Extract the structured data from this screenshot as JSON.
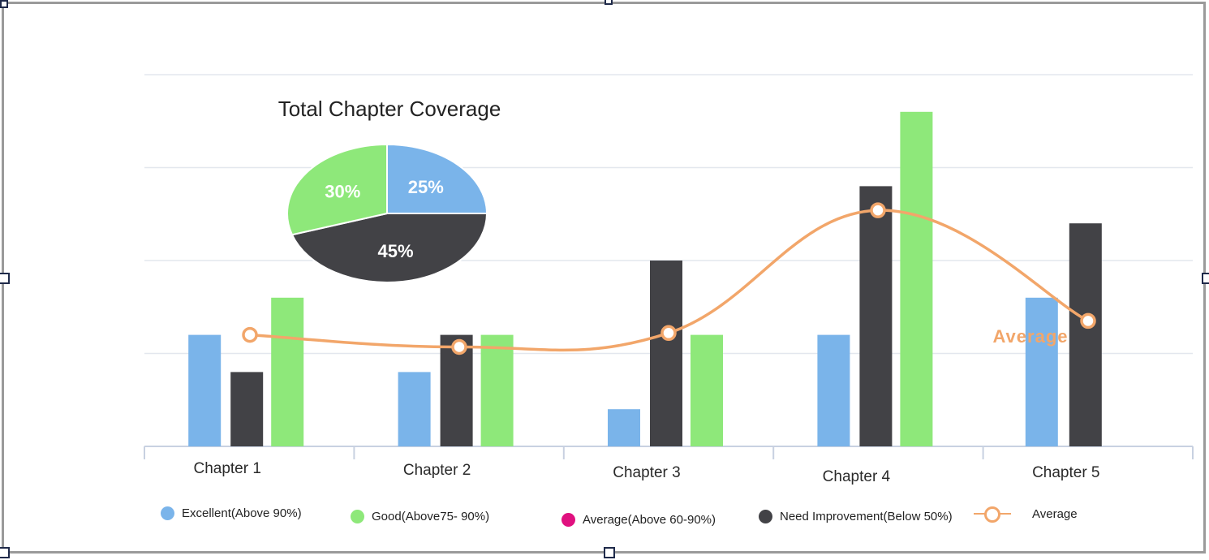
{
  "colors": {
    "excellent": "#7ab4ea",
    "good": "#8ee87a",
    "average_dot": "#e0117f",
    "need_improvement": "#424246",
    "average_line": "#f2a66a",
    "grid": "#e3e7ee",
    "axis": "#c8d1e1"
  },
  "chart_data": [
    {
      "type": "bar",
      "categories": [
        "Chapter 1",
        "Chapter 2",
        "Chapter 3",
        "Chapter 4",
        "Chapter 5"
      ],
      "ylim": [
        0,
        4
      ],
      "grid": true,
      "series": [
        {
          "name": "Excellent(Above 90%)",
          "key": "excellent",
          "values": [
            1.2,
            0.8,
            0.4,
            1.2,
            1.6
          ]
        },
        {
          "name": "Need Improvement(Below 50%)",
          "key": "need_improvement",
          "values": [
            0.8,
            1.2,
            2.0,
            2.8,
            2.4
          ]
        },
        {
          "name": "Good(Above75- 90%)",
          "key": "good",
          "values": [
            1.6,
            1.2,
            1.2,
            3.6,
            null
          ]
        }
      ],
      "line_series": {
        "name": "Average",
        "values": [
          1.2,
          1.07,
          1.22,
          2.54,
          1.35
        ],
        "label": "Average"
      }
    },
    {
      "type": "pie",
      "title": "Total Chapter Coverage",
      "slices": [
        {
          "key": "excellent",
          "value": 25,
          "label": "25%"
        },
        {
          "key": "need_improvement",
          "value": 45,
          "label": "45%"
        },
        {
          "key": "good",
          "value": 30,
          "label": "30%"
        }
      ]
    }
  ],
  "legend": [
    {
      "key": "excellent",
      "label": "Excellent(Above 90%)"
    },
    {
      "key": "good",
      "label": "Good(Above75- 90%)"
    },
    {
      "key": "average_dot",
      "label": "Average(Above 60-90%)"
    },
    {
      "key": "need_improvement",
      "label": "Need Improvement(Below 50%)"
    },
    {
      "key": "average_line",
      "label": "Average",
      "marker": "line"
    }
  ]
}
